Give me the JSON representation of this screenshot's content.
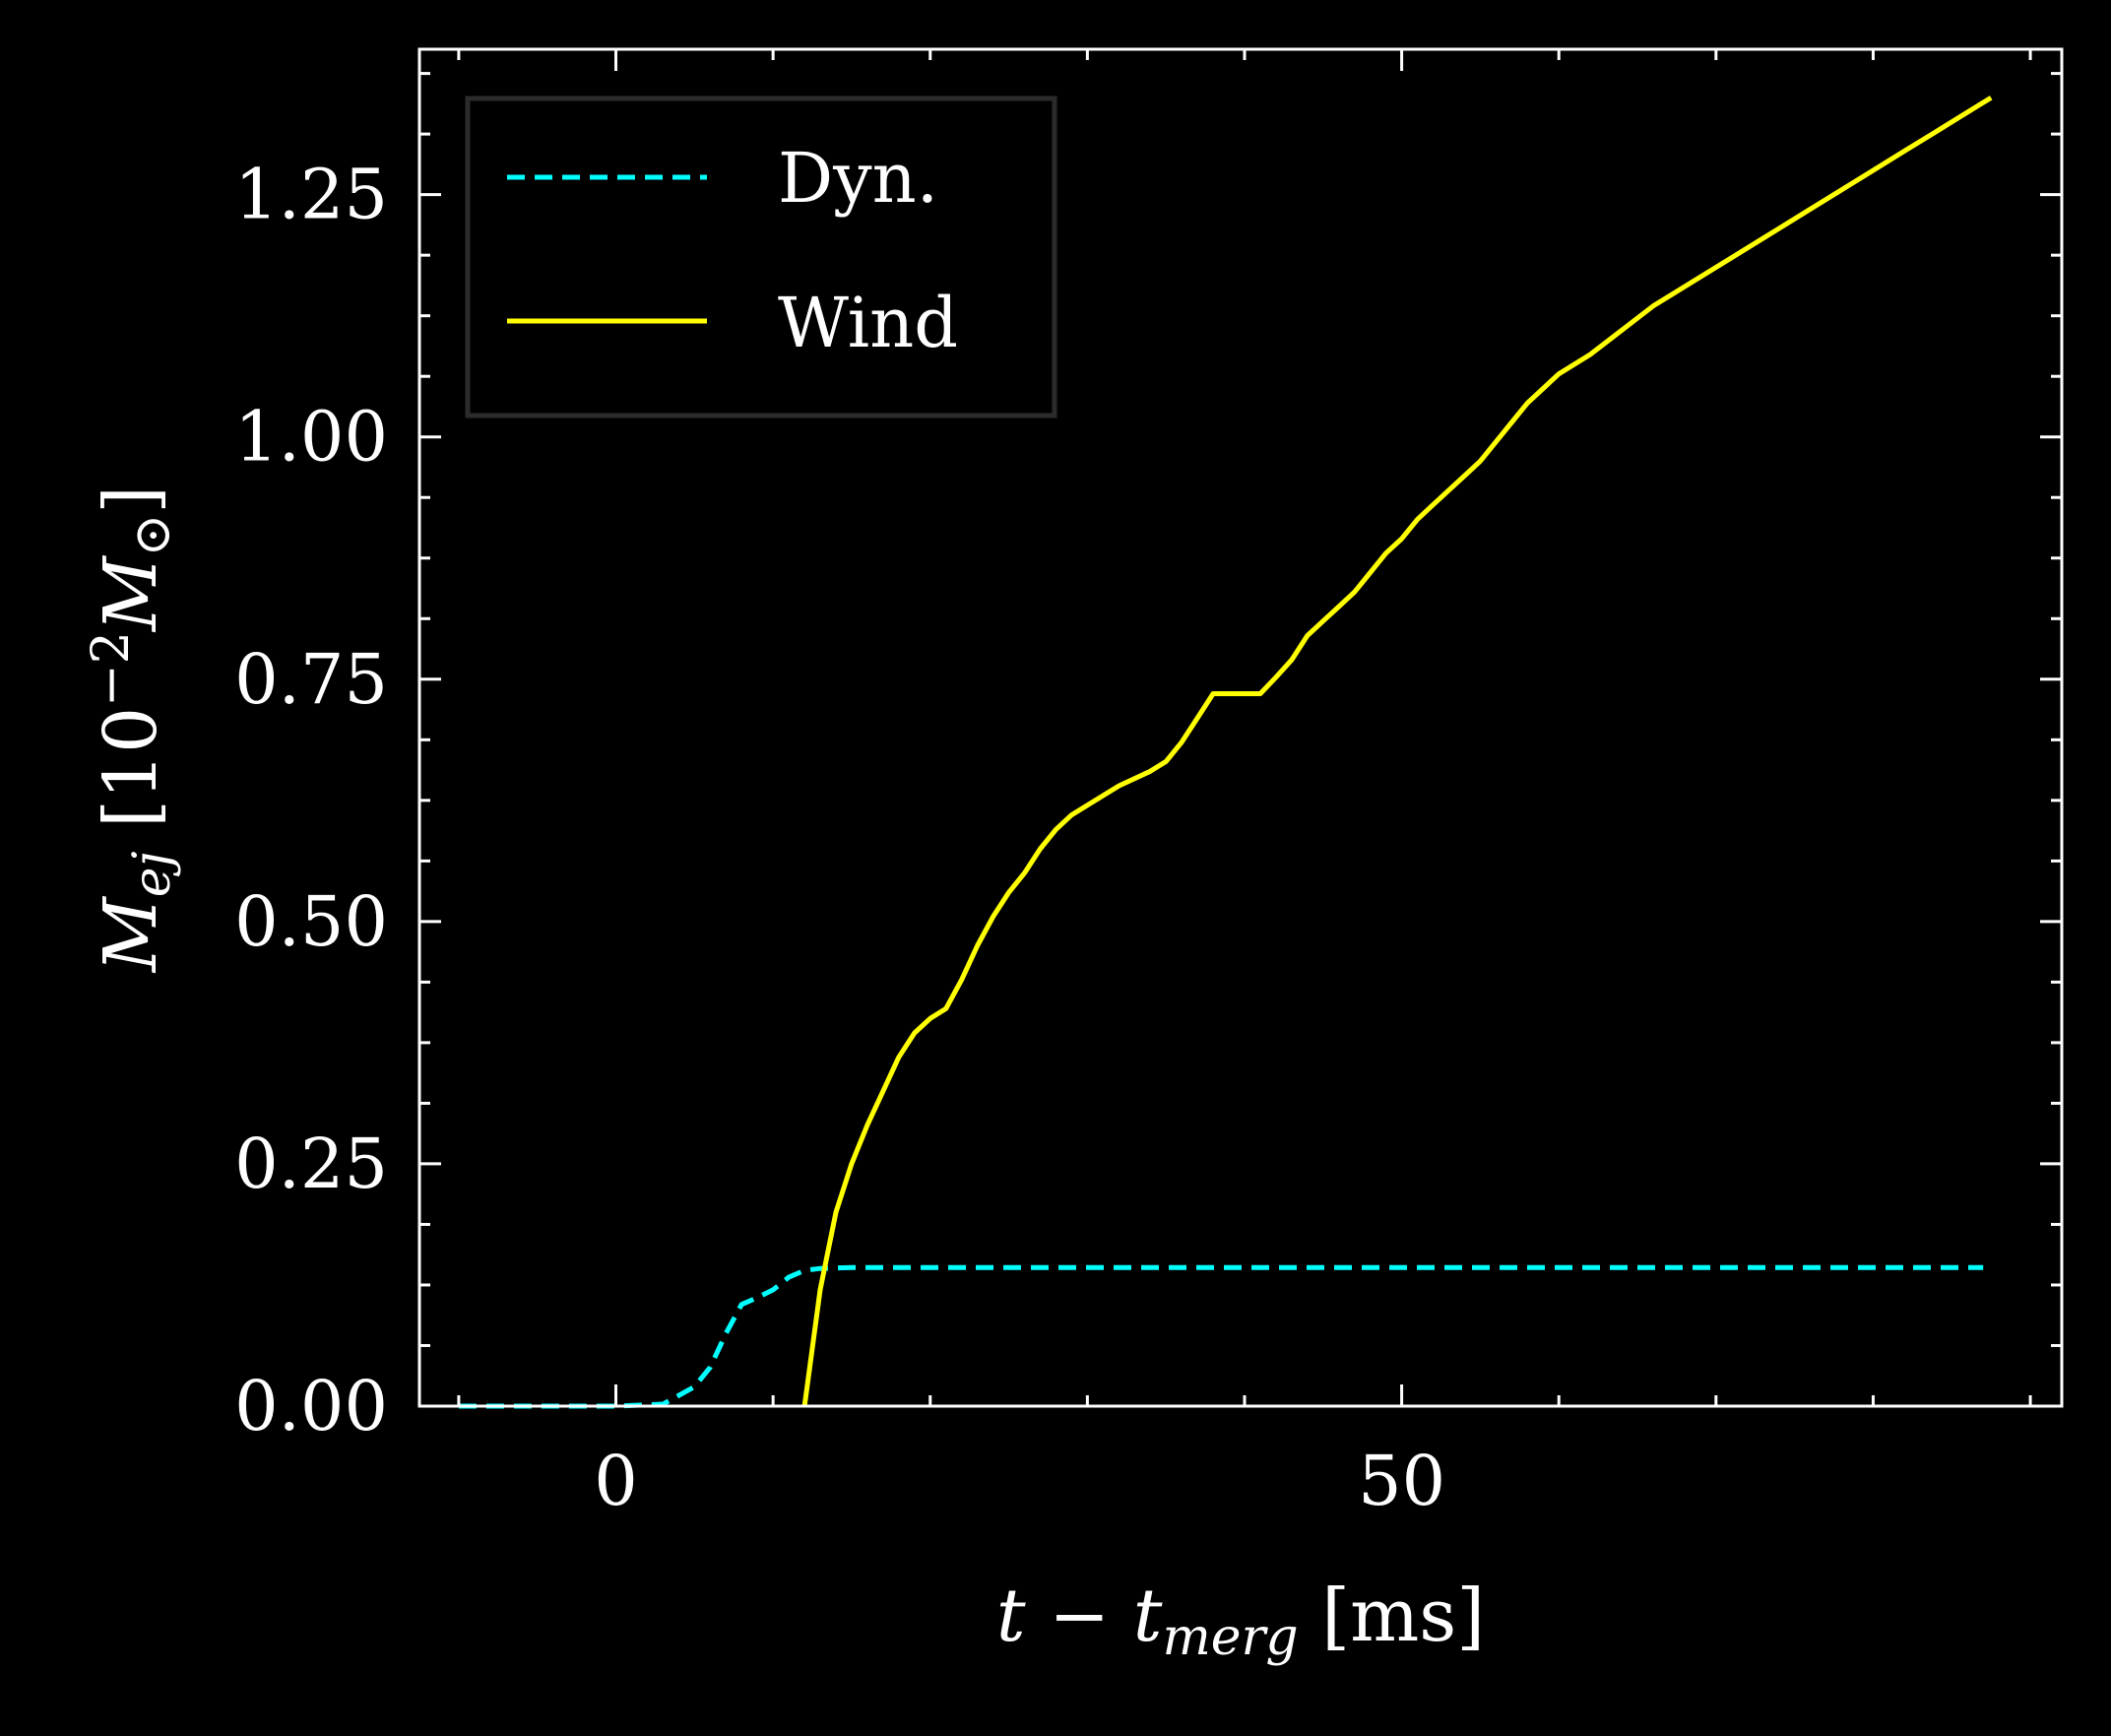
{
  "chart_data": {
    "type": "line",
    "title": "",
    "xlabel": "t − t",
    "xlabel_sub": "merg",
    "xlabel_unit": " [ms]",
    "ylabel": "M",
    "ylabel_sub": "ej",
    "ylabel_unit": " [10",
    "ylabel_exp": "−2",
    "ylabel_unit2": "M",
    "ylabel_sub2": "⊙",
    "ylabel_close": "]",
    "xlim": [
      -12.5,
      92
    ],
    "ylim": [
      0,
      1.4
    ],
    "xticks": [
      0,
      50
    ],
    "xtick_labels": [
      "0",
      "50"
    ],
    "yticks": [
      0,
      0.25,
      0.5,
      0.75,
      1.0,
      1.25
    ],
    "ytick_labels": [
      "0.00",
      "0.25",
      "0.50",
      "0.75",
      "1.00",
      "1.25"
    ],
    "grid": false,
    "legend_position": "top-left",
    "background": "#000000",
    "foreground": "#ffffff",
    "series": [
      {
        "name": "Dyn.",
        "color": "#00ffff",
        "style": "dashed",
        "x": [
          -10,
          -5,
          0,
          3,
          5,
          6,
          7,
          8,
          9,
          10,
          11,
          12,
          13,
          15,
          20,
          30,
          50,
          70,
          87
        ],
        "y": [
          0,
          0,
          0,
          0.002,
          0.02,
          0.04,
          0.075,
          0.105,
          0.112,
          0.12,
          0.133,
          0.14,
          0.142,
          0.143,
          0.143,
          0.143,
          0.143,
          0.143,
          0.143
        ]
      },
      {
        "name": "Wind",
        "color": "#ffff00",
        "style": "solid",
        "x": [
          12,
          13,
          14,
          15,
          16,
          17,
          18,
          19,
          20,
          21,
          22,
          23,
          24,
          25,
          26,
          27,
          28,
          29,
          30,
          32,
          34,
          35,
          36,
          37,
          38,
          39,
          40,
          41,
          42,
          43,
          44,
          45,
          46,
          47,
          48,
          49,
          50,
          51,
          52,
          53,
          54,
          55,
          56,
          57,
          58,
          59,
          60,
          62,
          64,
          66,
          68,
          70,
          72,
          74,
          76,
          78,
          80,
          82,
          84,
          86,
          87.5
        ],
        "y": [
          0,
          0.12,
          0.2,
          0.25,
          0.29,
          0.325,
          0.36,
          0.385,
          0.4,
          0.41,
          0.44,
          0.475,
          0.505,
          0.53,
          0.55,
          0.575,
          0.595,
          0.61,
          0.62,
          0.64,
          0.655,
          0.665,
          0.685,
          0.71,
          0.735,
          0.735,
          0.735,
          0.735,
          0.752,
          0.77,
          0.795,
          0.81,
          0.825,
          0.84,
          0.86,
          0.88,
          0.895,
          0.915,
          0.93,
          0.945,
          0.96,
          0.975,
          0.995,
          1.015,
          1.035,
          1.05,
          1.065,
          1.085,
          1.11,
          1.135,
          1.155,
          1.175,
          1.195,
          1.215,
          1.235,
          1.255,
          1.275,
          1.295,
          1.315,
          1.335,
          1.35
        ]
      }
    ]
  }
}
